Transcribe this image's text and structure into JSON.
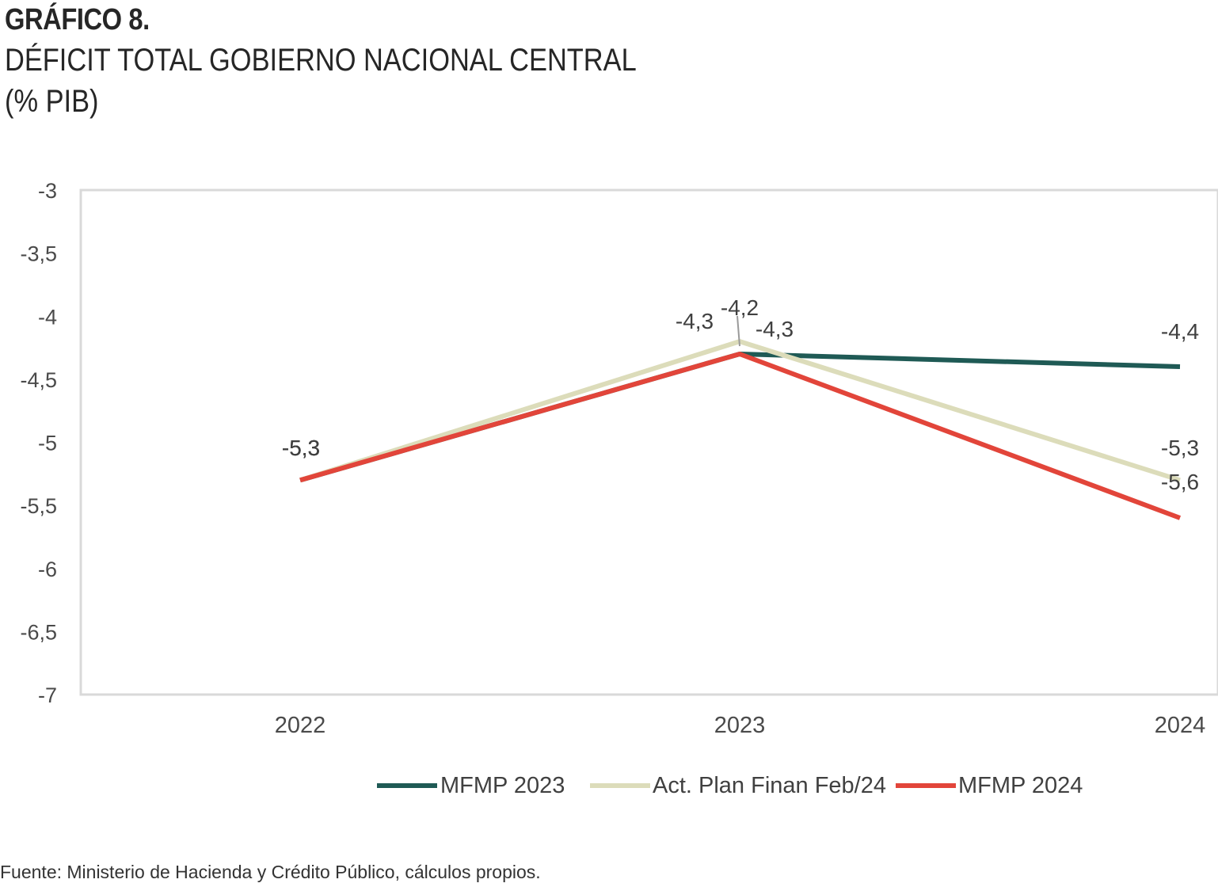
{
  "header": {
    "label": "GRÁFICO 8.",
    "title": "DÉFICIT TOTAL GOBIERNO NACIONAL CENTRAL",
    "unit": "(% PIB)"
  },
  "source": "Fuente: Ministerio de Hacienda y Crédito Público, cálculos propios.",
  "chart_data": {
    "type": "line",
    "title": "DÉFICIT TOTAL GOBIERNO NACIONAL CENTRAL",
    "ylabel": "",
    "xlabel": "",
    "categories": [
      "2022",
      "2023",
      "2024"
    ],
    "ylim": [
      -7,
      -3
    ],
    "yticks": [
      -3,
      -3.5,
      -4,
      -4.5,
      -5,
      -5.5,
      -6,
      -6.5,
      -7
    ],
    "ytick_labels": [
      "-3",
      "-3,5",
      "-4",
      "-4,5",
      "-5",
      "-5,5",
      "-6",
      "-6,5",
      "-7"
    ],
    "grid": false,
    "legend_position": "bottom",
    "series": [
      {
        "name": "MFMP 2023",
        "color": "#1f5a55",
        "values": [
          -5.3,
          -4.3,
          -4.4
        ],
        "labels": [
          "-5,3",
          "-4,3",
          "-4,4"
        ]
      },
      {
        "name": "Act. Plan Finan Feb/24",
        "color": "#dcdcba",
        "values": [
          -5.3,
          -4.2,
          -5.3
        ],
        "labels": [
          "-5,3",
          "-4,2",
          "-5,3"
        ]
      },
      {
        "name": "MFMP 2024",
        "color": "#e2453a",
        "values": [
          -5.3,
          -4.3,
          -5.6
        ],
        "labels": [
          "-5,3",
          "-4,3",
          "-5,6"
        ]
      }
    ]
  }
}
